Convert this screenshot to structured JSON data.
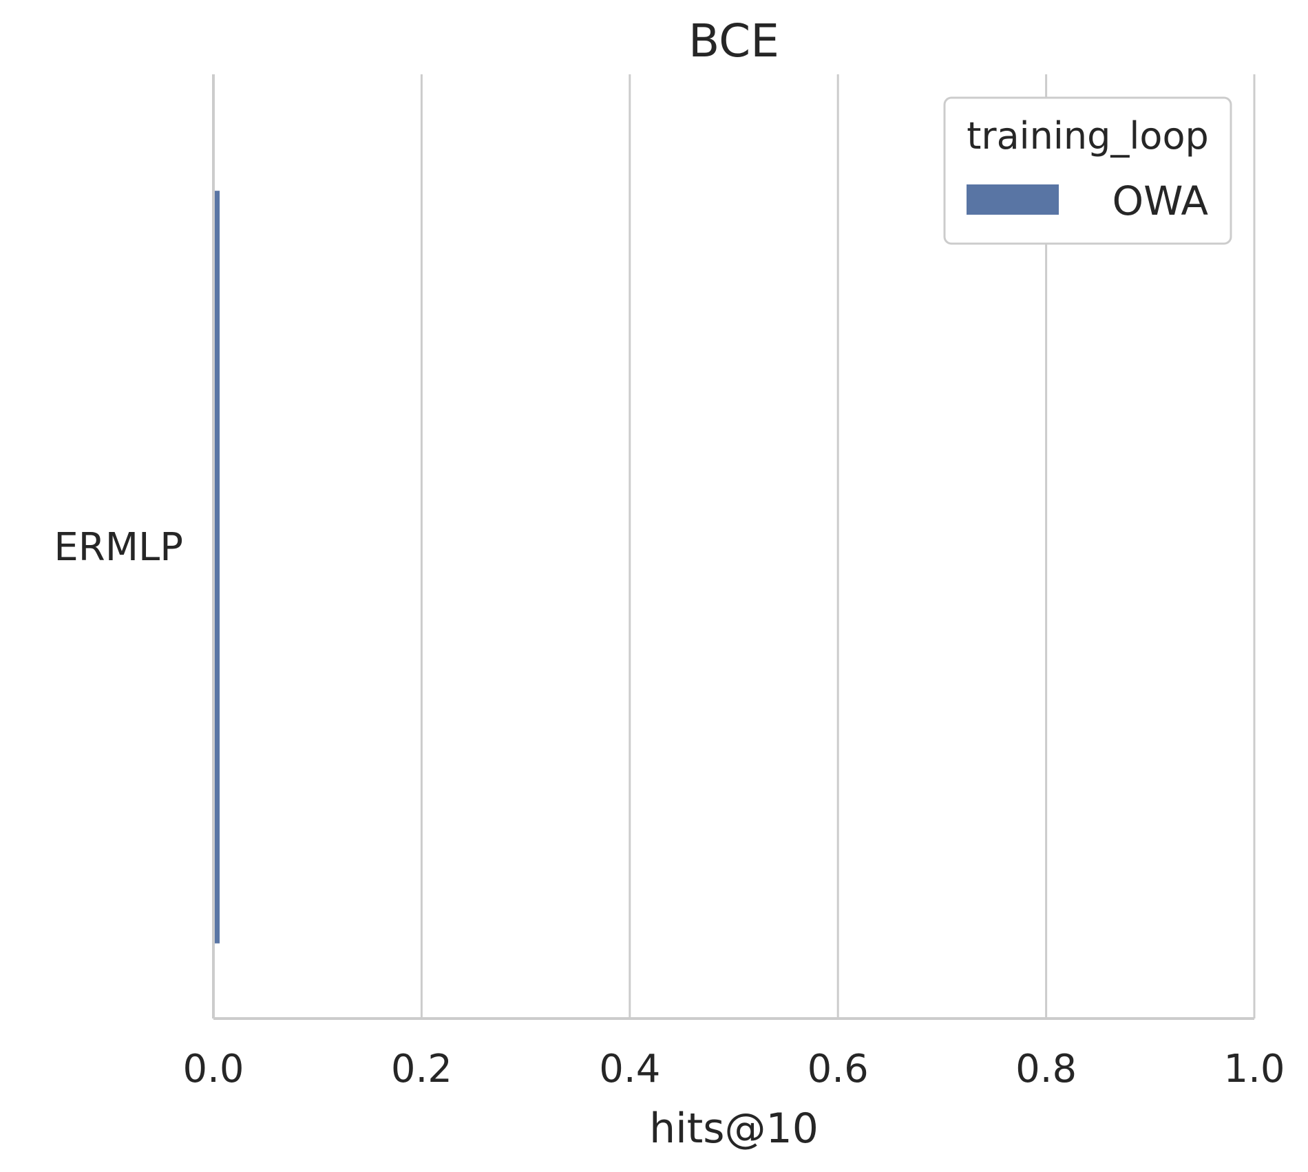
{
  "chart_data": {
    "type": "bar",
    "orientation": "horizontal",
    "title": "BCE",
    "xlabel": "hits@10",
    "ylabel": "",
    "xlim": [
      0,
      1
    ],
    "xticks": [
      "0.0",
      "0.2",
      "0.4",
      "0.6",
      "0.8",
      "1.0"
    ],
    "categories": [
      "ERMLP"
    ],
    "series": [
      {
        "name": "OWA",
        "values": [
          0.006
        ],
        "color": "#5975a4"
      }
    ],
    "legend": {
      "title": "training_loop",
      "placement": "top-right"
    },
    "grid": "vertical"
  }
}
